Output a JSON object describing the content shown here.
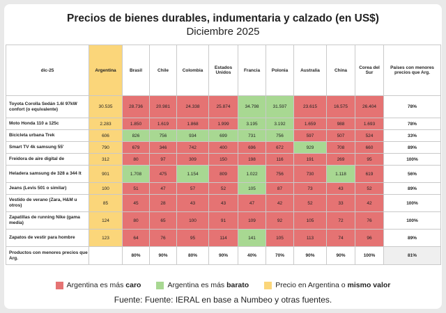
{
  "title": "Precios de bienes durables, indumentaria y calzado (en US$)",
  "subtitle": "Diciembre 2025",
  "colors": {
    "caro": "#e57373",
    "barato": "#a8d892",
    "mismo": "#fbd67a"
  },
  "header": {
    "corner": "dic-25",
    "countries": [
      "Argentina",
      "Brasil",
      "Chile",
      "Colombia",
      "Estados Unidos",
      "Francia",
      "Polonia",
      "Australia",
      "China",
      "Corea del Sur"
    ],
    "last": "Países con menores precios que Arg."
  },
  "rows": [
    {
      "label": "Toyota Corolla Sedán 1.6l 97kW confort (o equivalente)",
      "arg": "30.535",
      "values": [
        "28.736",
        "20.981",
        "24.338",
        "25.874",
        "34.798",
        "31.597",
        "23.615",
        "16.575",
        "26.404"
      ],
      "colors": [
        "r",
        "r",
        "r",
        "r",
        "g",
        "g",
        "r",
        "r",
        "r"
      ],
      "pct": "78%"
    },
    {
      "label": "Moto Honda 110 a 125c",
      "arg": "2.283",
      "values": [
        "1.850",
        "1.619",
        "1.868",
        "1.999",
        "3.195",
        "3.192",
        "1.659",
        "988",
        "1.693"
      ],
      "colors": [
        "r",
        "r",
        "r",
        "r",
        "g",
        "g",
        "r",
        "r",
        "r"
      ],
      "pct": "78%"
    },
    {
      "label": "Bicicleta urbana Trek",
      "arg": "606",
      "values": [
        "826",
        "756",
        "934",
        "699",
        "731",
        "756",
        "597",
        "507",
        "524"
      ],
      "colors": [
        "g",
        "g",
        "g",
        "g",
        "g",
        "g",
        "r",
        "r",
        "r"
      ],
      "pct": "33%"
    },
    {
      "label": "Smart TV 4k samsung 55'",
      "arg": "790",
      "values": [
        "679",
        "346",
        "742",
        "400",
        "696",
        "672",
        "929",
        "708",
        "660"
      ],
      "colors": [
        "r",
        "r",
        "r",
        "r",
        "r",
        "r",
        "g",
        "r",
        "r"
      ],
      "pct": "89%"
    },
    {
      "label": "Freidora de aire digital de",
      "arg": "312",
      "values": [
        "80",
        "97",
        "309",
        "150",
        "198",
        "116",
        "191",
        "269",
        "95"
      ],
      "colors": [
        "r",
        "r",
        "r",
        "r",
        "r",
        "r",
        "r",
        "r",
        "r"
      ],
      "pct": "100%"
    },
    {
      "label": "Heladera samsung de 328 a 344 lt",
      "arg": "901",
      "values": [
        "1.708",
        "475",
        "1.154",
        "809",
        "1.022",
        "756",
        "730",
        "1.118",
        "619"
      ],
      "colors": [
        "g",
        "r",
        "g",
        "r",
        "g",
        "r",
        "r",
        "g",
        "r"
      ],
      "pct": "56%"
    },
    {
      "label": "Jeans (Levis 501 o similar)",
      "arg": "100",
      "values": [
        "51",
        "47",
        "57",
        "52",
        "105",
        "87",
        "73",
        "43",
        "52"
      ],
      "colors": [
        "r",
        "r",
        "r",
        "r",
        "g",
        "r",
        "r",
        "r",
        "r"
      ],
      "pct": "89%"
    },
    {
      "label": "Vestido de verano (Zara, H&M u otros)",
      "arg": "85",
      "values": [
        "45",
        "28",
        "43",
        "43",
        "47",
        "42",
        "52",
        "33",
        "42"
      ],
      "colors": [
        "r",
        "r",
        "r",
        "r",
        "r",
        "r",
        "r",
        "r",
        "r"
      ],
      "pct": "100%"
    },
    {
      "label": "Zapatillas de running Nike (gama media)",
      "arg": "124",
      "values": [
        "80",
        "65",
        "100",
        "91",
        "109",
        "92",
        "105",
        "72",
        "76"
      ],
      "colors": [
        "r",
        "r",
        "r",
        "r",
        "r",
        "r",
        "r",
        "r",
        "r"
      ],
      "pct": "100%"
    },
    {
      "label": "Zapatos de vestir para hombre",
      "arg": "123",
      "values": [
        "64",
        "76",
        "95",
        "114",
        "141",
        "105",
        "113",
        "74",
        "96"
      ],
      "colors": [
        "r",
        "r",
        "r",
        "r",
        "g",
        "r",
        "r",
        "r",
        "r"
      ],
      "pct": "89%"
    }
  ],
  "footer_row": {
    "label": "Productos con menores precios que Arg.",
    "values": [
      "80%",
      "90%",
      "80%",
      "90%",
      "40%",
      "70%",
      "90%",
      "90%",
      "100%"
    ],
    "total": "81%"
  },
  "legend": {
    "caro_prefix": "Argentina es más ",
    "caro_bold": "caro",
    "barato_prefix": "Argentina es más ",
    "barato_bold": "barato",
    "mismo_prefix": "Precio en Argentina o ",
    "mismo_bold": "mismo valor"
  },
  "source": "Fuente: Fuente: IERAL en base a Numbeo y otras fuentes."
}
